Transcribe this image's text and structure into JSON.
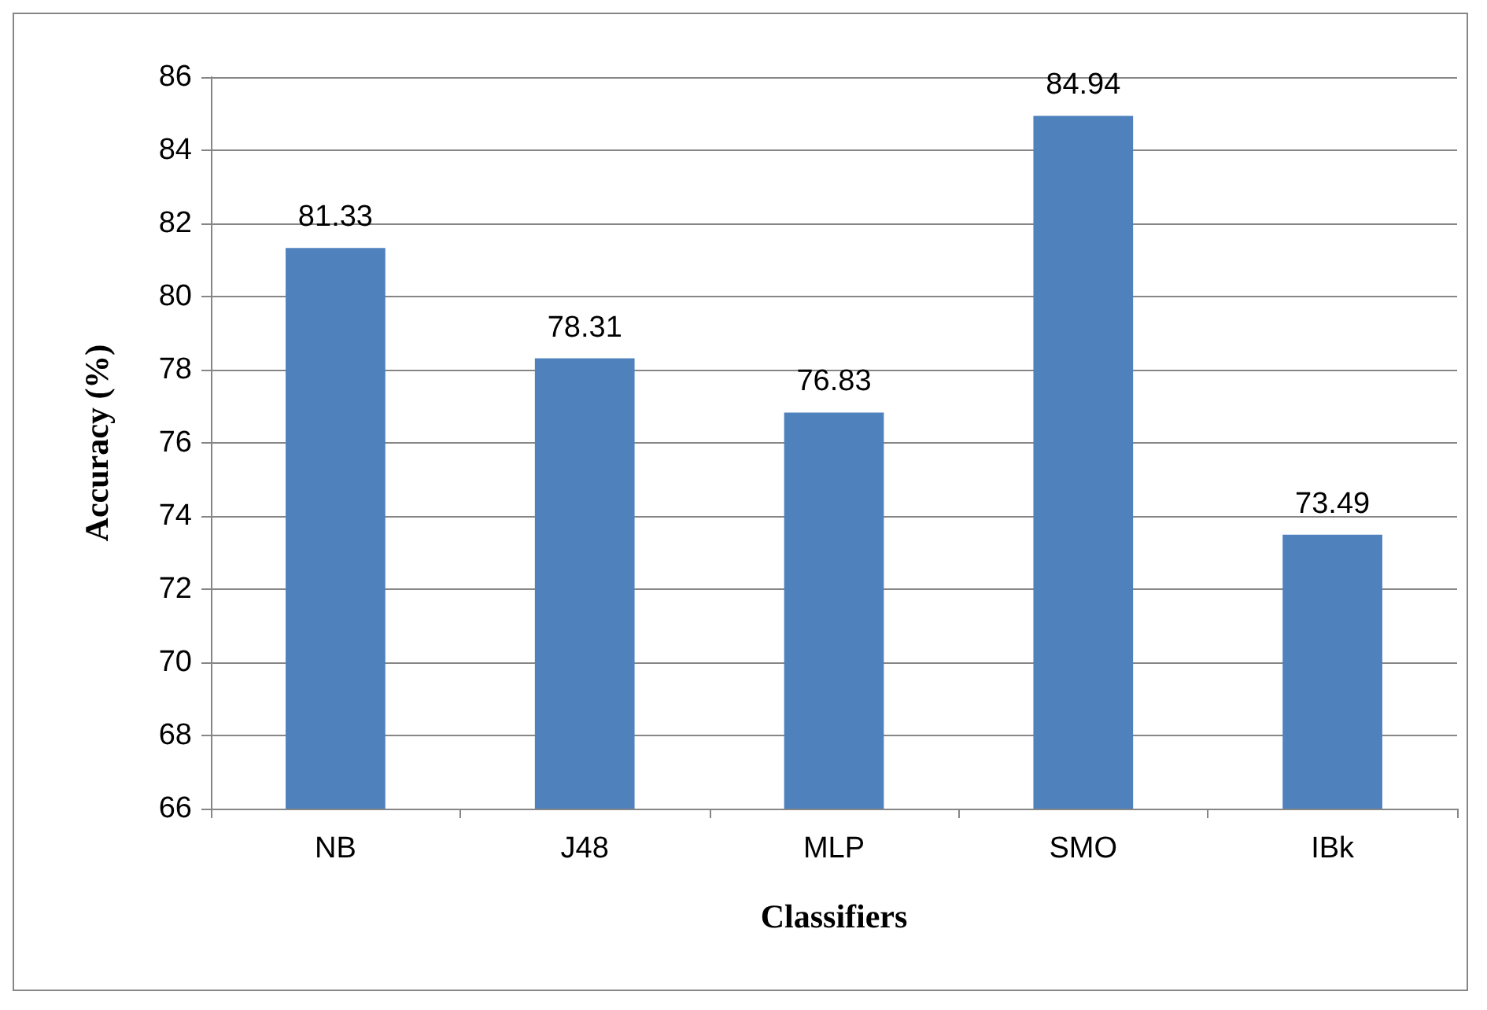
{
  "chart_data": {
    "type": "bar",
    "xlabel": "Classifiers",
    "ylabel": "Accuracy (%)",
    "categories": [
      "NB",
      "J48",
      "MLP",
      "SMO",
      "IBk"
    ],
    "values": [
      81.33,
      78.31,
      76.83,
      84.94,
      73.49
    ],
    "color": "#4f81bd",
    "ylim": [
      66,
      86
    ],
    "yticks": [
      66,
      68,
      70,
      72,
      74,
      76,
      78,
      80,
      82,
      84,
      86
    ],
    "grid": "y",
    "data_labels": true
  }
}
